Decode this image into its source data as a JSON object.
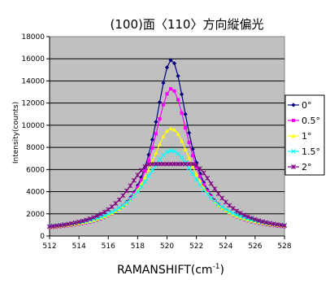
{
  "chart_data": {
    "type": "line",
    "title": "(100)面〈110〉方向縦偏光",
    "xlabel_main": "RAMANSHIFT(cm",
    "xlabel_sup": "-1",
    "xlabel_close": ")",
    "ylabel": "Intensity(counts)",
    "xlim": [
      512,
      528
    ],
    "ylim": [
      0,
      18000
    ],
    "x_ticks": [
      512,
      514,
      516,
      518,
      520,
      522,
      524,
      526,
      528
    ],
    "y_ticks": [
      0,
      2000,
      4000,
      6000,
      8000,
      10000,
      12000,
      14000,
      16000,
      18000
    ],
    "plot_background": "#c0c0c0",
    "grid": "horizontal",
    "legend_position": "right",
    "series": [
      {
        "name": "0°",
        "color": "#000080",
        "marker": "diamond",
        "peak": 15900,
        "center": 520.3,
        "width": 1.4,
        "base": 350,
        "flat_top": false
      },
      {
        "name": "0.5°",
        "color": "#ff00ff",
        "marker": "square",
        "peak": 13300,
        "center": 520.3,
        "width": 1.55,
        "base": 350,
        "flat_top": false
      },
      {
        "name": "1°",
        "color": "#ffff00",
        "marker": "triangle",
        "peak": 9700,
        "center": 520.3,
        "width": 1.9,
        "base": 350,
        "flat_top": false
      },
      {
        "name": "1.5°",
        "color": "#00ffff",
        "marker": "x",
        "peak": 7700,
        "center": 520.3,
        "width": 2.3,
        "base": 350,
        "flat_top": false
      },
      {
        "name": "2°",
        "color": "#800080",
        "marker": "star",
        "peak": 6500,
        "center": 520.3,
        "width": 3.3,
        "base": 350,
        "flat_top": true
      }
    ]
  }
}
